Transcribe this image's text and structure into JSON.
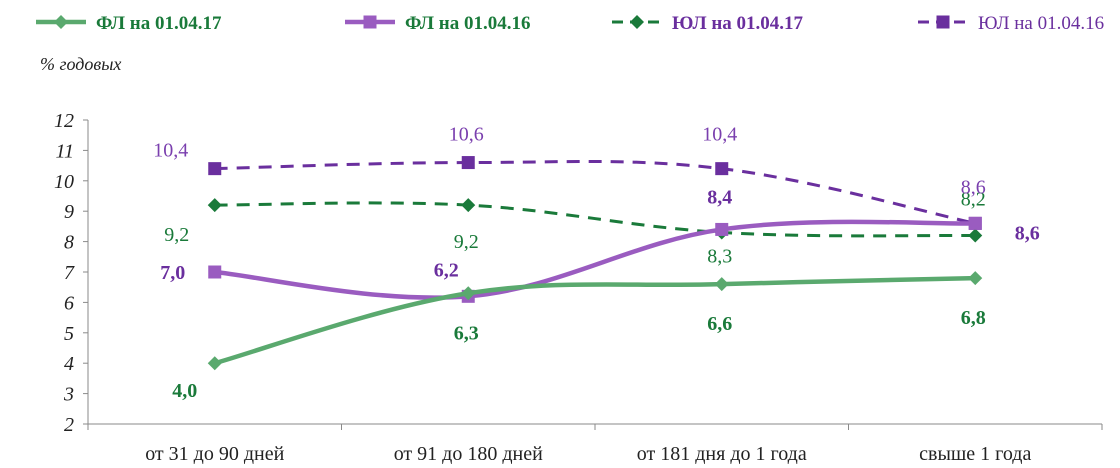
{
  "chart_data": {
    "type": "line",
    "ylabel": "% годовых",
    "ylim": [
      2,
      12
    ],
    "yticks": [
      2,
      3,
      4,
      5,
      6,
      7,
      8,
      9,
      10,
      11,
      12
    ],
    "categories": [
      "от 31 до 90 дней",
      "от 91 до 180 дней",
      "от 181 дня до 1 года",
      "свыше 1 года"
    ],
    "legend_position": "top",
    "series": [
      {
        "name": "ФЛ на 01.04.17",
        "values": [
          4.0,
          6.3,
          6.6,
          6.8
        ],
        "labels": [
          "4,0",
          "6,3",
          "6,6",
          "6,8"
        ],
        "color": "#5aa96e",
        "label_color": "#1a7a3a",
        "marker": "diamond",
        "dashed": false,
        "bold": true
      },
      {
        "name": "ФЛ на 01.04.16",
        "values": [
          7.0,
          6.2,
          8.4,
          8.6
        ],
        "labels": [
          "7,0",
          "6,2",
          "8,4",
          "8,6"
        ],
        "color": "#9a5cc0",
        "label_color": "#6a2f9e",
        "marker": "square",
        "dashed": false,
        "bold": true
      },
      {
        "name": "ЮЛ на 01.04.17",
        "values": [
          9.2,
          9.2,
          8.3,
          8.2
        ],
        "labels": [
          "9,2",
          "9,2",
          "8,3",
          "8,2"
        ],
        "color": "#1a7a3a",
        "label_color": "#1a7a3a",
        "marker": "diamond",
        "dashed": true,
        "bold": false
      },
      {
        "name": "ЮЛ на 01.04.16",
        "values": [
          10.4,
          10.6,
          10.4,
          8.6
        ],
        "labels": [
          "10,4",
          "10,6",
          "10,4",
          "8,6"
        ],
        "color": "#6a2f9e",
        "label_color": "#7a3fae",
        "marker": "square",
        "dashed": true,
        "bold": false
      }
    ]
  }
}
